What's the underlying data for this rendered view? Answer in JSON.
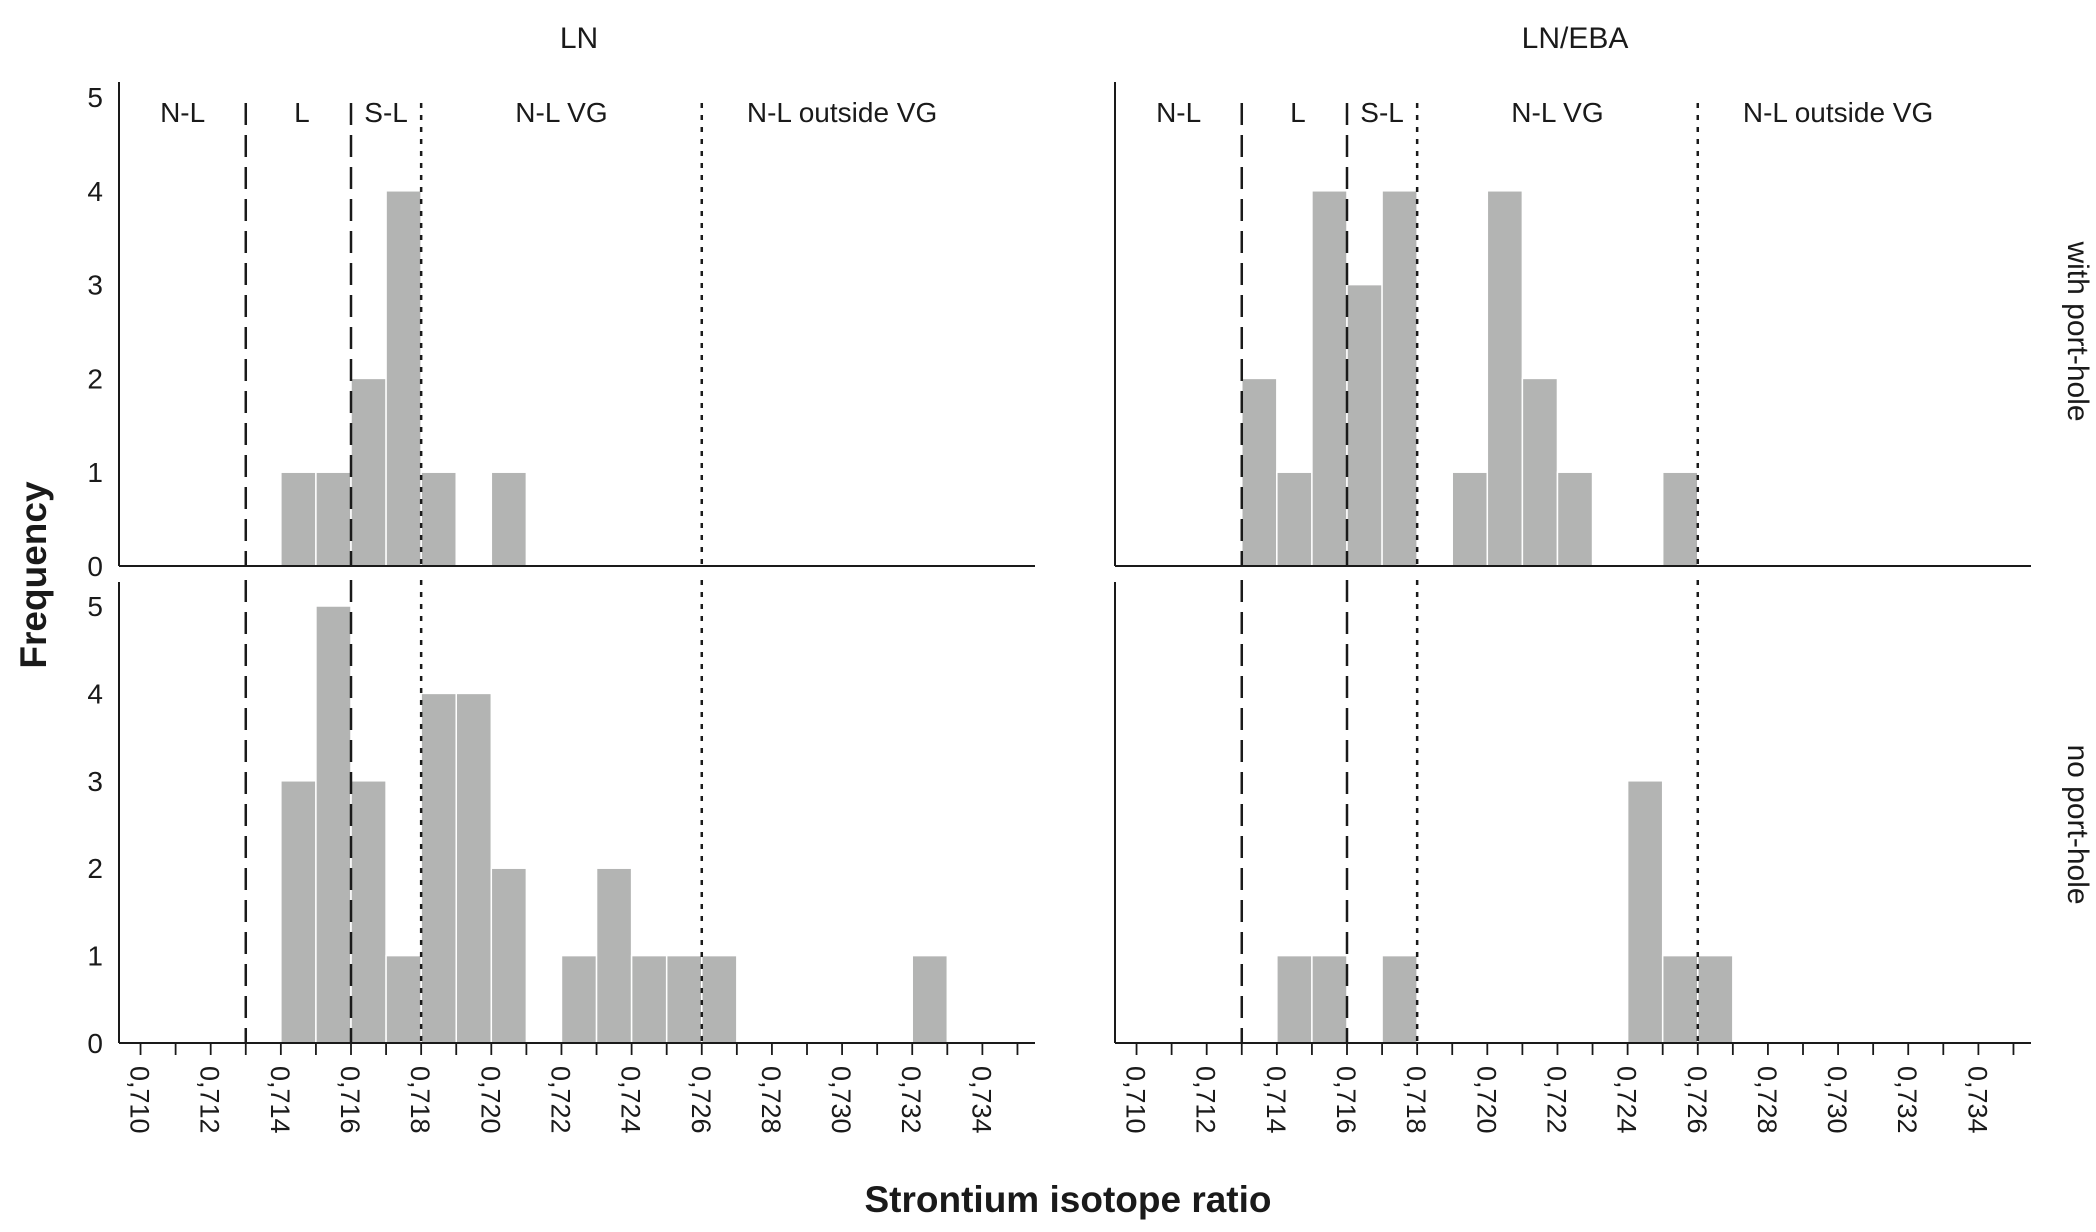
{
  "chart_data": {
    "type": "bar",
    "subtype": "faceted histogram",
    "xlabel": "Strontium isotope ratio",
    "ylabel": "Frequency",
    "ylim": [
      0,
      5
    ],
    "yticks": [
      "0",
      "1",
      "2",
      "3",
      "4",
      "5"
    ],
    "xlim": [
      0.7095,
      0.7355
    ],
    "xticks": [
      {
        "value": 0.71,
        "label": "0,710"
      },
      {
        "value": 0.712,
        "label": "0,712"
      },
      {
        "value": 0.714,
        "label": "0,714"
      },
      {
        "value": 0.716,
        "label": "0,716"
      },
      {
        "value": 0.718,
        "label": "0,718"
      },
      {
        "value": 0.72,
        "label": "0,720"
      },
      {
        "value": 0.722,
        "label": "0,722"
      },
      {
        "value": 0.724,
        "label": "0,724"
      },
      {
        "value": 0.726,
        "label": "0,726"
      },
      {
        "value": 0.728,
        "label": "0,728"
      },
      {
        "value": 0.73,
        "label": "0,730"
      },
      {
        "value": 0.732,
        "label": "0,732"
      },
      {
        "value": 0.734,
        "label": "0,734"
      }
    ],
    "bin_width": 0.001,
    "columns": [
      "LN",
      "LN/EBA"
    ],
    "rows": [
      "with port-hole",
      "no port-hole"
    ],
    "region_labels": [
      {
        "label": "N-L",
        "center": 0.7112
      },
      {
        "label": "L",
        "center": 0.7146
      },
      {
        "label": "S-L",
        "center": 0.717
      },
      {
        "label": "N-L VG",
        "center": 0.722
      },
      {
        "label": "N-L outside VG",
        "center": 0.73
      }
    ],
    "boundaries": [
      {
        "value": 0.713,
        "style": "dashed"
      },
      {
        "value": 0.716,
        "style": "dashed"
      },
      {
        "value": 0.718,
        "style": "dotted"
      },
      {
        "value": 0.726,
        "style": "dotted"
      }
    ],
    "bar_color": "#b3b4b3",
    "panels": [
      {
        "column": "LN",
        "row": "with port-hole",
        "bins": [
          {
            "start": 0.714,
            "count": 1
          },
          {
            "start": 0.715,
            "count": 1
          },
          {
            "start": 0.716,
            "count": 2
          },
          {
            "start": 0.717,
            "count": 4
          },
          {
            "start": 0.718,
            "count": 1
          },
          {
            "start": 0.72,
            "count": 1
          }
        ]
      },
      {
        "column": "LN/EBA",
        "row": "with port-hole",
        "bins": [
          {
            "start": 0.713,
            "count": 2
          },
          {
            "start": 0.714,
            "count": 1
          },
          {
            "start": 0.715,
            "count": 4
          },
          {
            "start": 0.716,
            "count": 3
          },
          {
            "start": 0.717,
            "count": 4
          },
          {
            "start": 0.719,
            "count": 1
          },
          {
            "start": 0.72,
            "count": 4
          },
          {
            "start": 0.721,
            "count": 2
          },
          {
            "start": 0.722,
            "count": 1
          },
          {
            "start": 0.725,
            "count": 1
          }
        ]
      },
      {
        "column": "LN",
        "row": "no port-hole",
        "bins": [
          {
            "start": 0.714,
            "count": 3
          },
          {
            "start": 0.715,
            "count": 5
          },
          {
            "start": 0.716,
            "count": 3
          },
          {
            "start": 0.717,
            "count": 1
          },
          {
            "start": 0.718,
            "count": 4
          },
          {
            "start": 0.719,
            "count": 4
          },
          {
            "start": 0.72,
            "count": 2
          },
          {
            "start": 0.722,
            "count": 1
          },
          {
            "start": 0.723,
            "count": 2
          },
          {
            "start": 0.724,
            "count": 1
          },
          {
            "start": 0.725,
            "count": 1
          },
          {
            "start": 0.726,
            "count": 1
          },
          {
            "start": 0.732,
            "count": 1
          }
        ]
      },
      {
        "column": "LN/EBA",
        "row": "no port-hole",
        "bins": [
          {
            "start": 0.714,
            "count": 1
          },
          {
            "start": 0.715,
            "count": 1
          },
          {
            "start": 0.717,
            "count": 1
          },
          {
            "start": 0.724,
            "count": 3
          },
          {
            "start": 0.725,
            "count": 1
          },
          {
            "start": 0.726,
            "count": 1
          }
        ]
      }
    ]
  }
}
